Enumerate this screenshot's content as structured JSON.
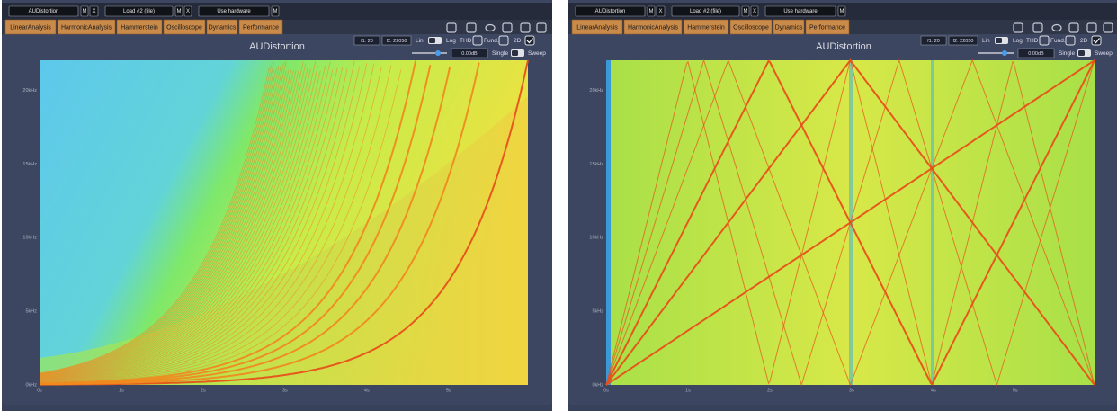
{
  "panels": [
    {
      "toolbar": [
        "AUDistortion",
        "M",
        "X",
        "Load #2 (file)",
        "M",
        "X",
        "Use hardware",
        "M"
      ],
      "tabs": [
        "LinearAnalysis",
        "HarmonicAnalysis",
        "Hammerstein",
        "Oscilloscope",
        "Dynamics",
        "Performance"
      ],
      "title": "AUDistortion",
      "controls": {
        "f1": "f1: 20",
        "f2": "f2: 22050",
        "lin": "Lin",
        "log": "Log",
        "thd": "THD",
        "fund": "Fund.",
        "mode": "2D",
        "gain": "0.00dB",
        "single": "Single",
        "sweep": "Sweep"
      },
      "y_labels": [
        "0kHz",
        "5kHz",
        "10kHz",
        "15kHz",
        "20kHz"
      ],
      "x_labels": [
        "0s",
        "1s",
        "2s",
        "3s",
        "4s",
        "5s"
      ]
    },
    {
      "toolbar": [
        "AUDistortion",
        "M",
        "X",
        "Load #2 (file)",
        "M",
        "X",
        "Use hardware",
        "M"
      ],
      "tabs": [
        "LinearAnalysis",
        "HarmonicAnalysis",
        "Hammerstein",
        "Oscilloscope",
        "Dynamics",
        "Performance"
      ],
      "title": "AUDistortion",
      "controls": {
        "f1": "f1: 20",
        "f2": "f2: 22050",
        "lin": "Lin",
        "log": "Log",
        "thd": "THD",
        "fund": "Fund.",
        "mode": "2D",
        "gain": "0.00dB",
        "single": "Single",
        "sweep": "Sweep"
      },
      "y_labels": [
        "0kHz",
        "5kHz",
        "10kHz",
        "15kHz",
        "20kHz"
      ],
      "x_labels": [
        "0s",
        "1s",
        "2s",
        "3s",
        "4s",
        "5s"
      ]
    }
  ]
}
